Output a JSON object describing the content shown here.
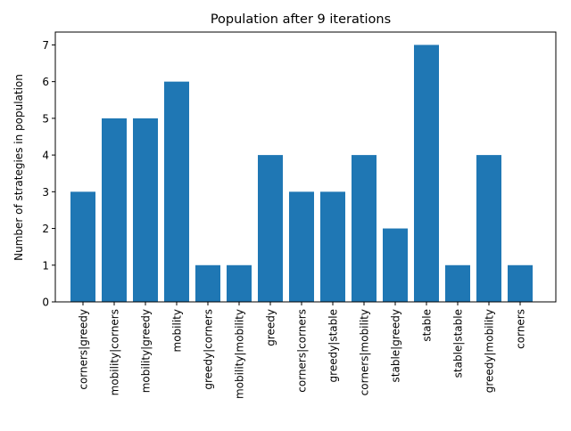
{
  "chart_data": {
    "type": "bar",
    "title": "Population after 9 iterations",
    "xlabel": "",
    "ylabel": "Number of strategies in population",
    "categories": [
      "corners|greedy",
      "mobility|corners",
      "mobility|greedy",
      "mobility",
      "greedy|corners",
      "mobility|mobility",
      "greedy",
      "corners|corners",
      "greedy|stable",
      "corners|mobility",
      "stable|greedy",
      "stable",
      "stable|stable",
      "greedy|mobility",
      "corners"
    ],
    "values": [
      3,
      5,
      5,
      6,
      1,
      1,
      4,
      3,
      3,
      4,
      2,
      7,
      1,
      4,
      1
    ],
    "ylim": [
      0,
      7.35
    ],
    "yticks": [
      "0",
      "1",
      "2",
      "3",
      "4",
      "5",
      "6",
      "7"
    ],
    "bar_color": "#1f77b4",
    "grid": false,
    "legend": "none"
  }
}
